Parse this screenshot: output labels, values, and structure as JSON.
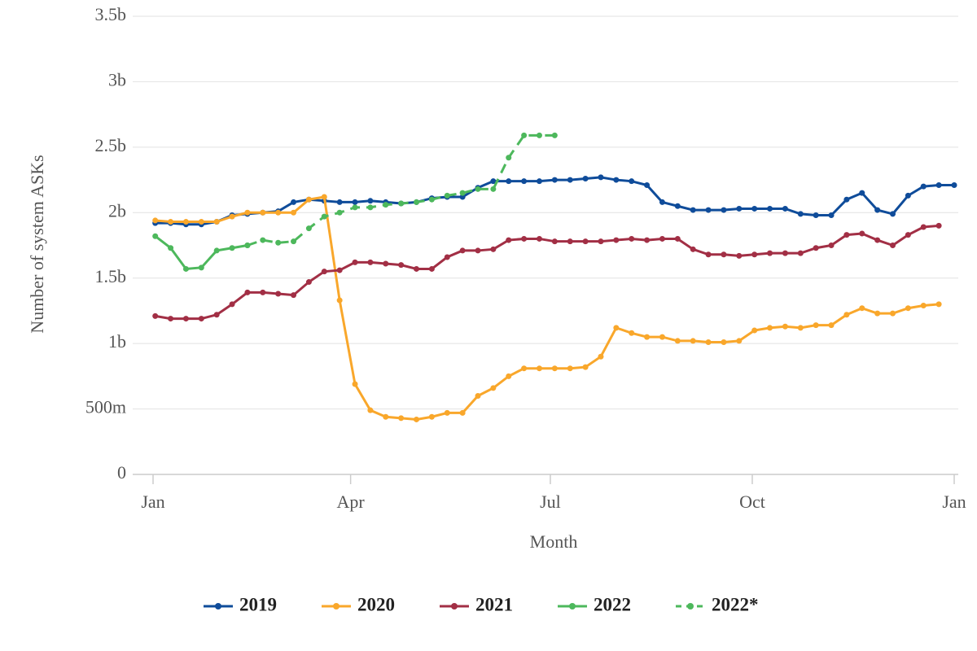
{
  "chart_data": {
    "type": "line",
    "x_label": "Month",
    "y_label": "Number of system ASKs",
    "xlim": [
      0,
      365
    ],
    "xticks": [
      {
        "value": 0,
        "label": "Jan"
      },
      {
        "value": 90,
        "label": "Apr"
      },
      {
        "value": 181,
        "label": "Jul"
      },
      {
        "value": 273,
        "label": "Oct"
      },
      {
        "value": 365,
        "label": "Jan"
      }
    ],
    "ylim": [
      0,
      3.5
    ],
    "yticks": [
      0,
      {
        "value": 0.5,
        "label": "500m"
      },
      {
        "value": 1,
        "label": "1b"
      },
      {
        "value": 1.5,
        "label": "1.5b"
      },
      {
        "value": 2,
        "label": "2b"
      },
      {
        "value": 2.5,
        "label": "2.5b"
      },
      {
        "value": 3,
        "label": "3b"
      },
      {
        "value": 3.5,
        "label": "3.5b"
      }
    ],
    "grid": true,
    "legend": "bottom",
    "x": [
      1,
      8,
      15,
      22,
      29,
      36,
      43,
      50,
      57,
      64,
      71,
      78,
      85,
      92,
      99,
      106,
      113,
      120,
      127,
      134,
      141,
      148,
      155,
      162,
      169,
      176,
      183,
      190,
      197,
      204,
      211,
      218,
      225,
      232,
      239,
      246,
      253,
      260,
      267,
      274,
      281,
      288,
      295,
      302,
      309,
      316,
      323,
      330,
      337,
      344,
      351,
      358,
      365
    ],
    "series": [
      {
        "name": "2019",
        "color": "#0f4c9a",
        "dash": false,
        "values": [
          1.92,
          1.92,
          1.91,
          1.91,
          1.93,
          1.98,
          1.99,
          2.0,
          2.01,
          2.08,
          2.1,
          2.09,
          2.08,
          2.08,
          2.09,
          2.08,
          2.07,
          2.08,
          2.11,
          2.12,
          2.12,
          2.19,
          2.24,
          2.24,
          2.24,
          2.24,
          2.25,
          2.25,
          2.26,
          2.27,
          2.25,
          2.24,
          2.21,
          2.08,
          2.05,
          2.02,
          2.02,
          2.02,
          2.03,
          2.03,
          2.03,
          2.03,
          1.99,
          1.98,
          1.98,
          2.1,
          2.15,
          2.02,
          1.99,
          2.13,
          2.2,
          2.21,
          2.21
        ]
      },
      {
        "name": "2020",
        "color": "#f9a72b",
        "dash": false,
        "values": [
          1.94,
          1.93,
          1.93,
          1.93,
          1.93,
          1.97,
          2.0,
          2.0,
          2.0,
          2.0,
          2.1,
          2.12,
          1.33,
          0.69,
          0.49,
          0.44,
          0.43,
          0.42,
          0.44,
          0.47,
          0.47,
          0.6,
          0.66,
          0.75,
          0.81,
          0.81,
          0.81,
          0.81,
          0.82,
          0.9,
          1.12,
          1.08,
          1.05,
          1.05,
          1.02,
          1.02,
          1.01,
          1.01,
          1.02,
          1.1,
          1.12,
          1.13,
          1.12,
          1.14,
          1.14,
          1.22,
          1.27,
          1.23,
          1.23,
          1.27,
          1.29,
          1.3,
          null
        ]
      },
      {
        "name": "2021",
        "color": "#a22f45",
        "dash": false,
        "values": [
          1.21,
          1.19,
          1.19,
          1.19,
          1.22,
          1.3,
          1.39,
          1.39,
          1.38,
          1.37,
          1.47,
          1.55,
          1.56,
          1.62,
          1.62,
          1.61,
          1.6,
          1.57,
          1.57,
          1.66,
          1.71,
          1.71,
          1.72,
          1.79,
          1.8,
          1.8,
          1.78,
          1.78,
          1.78,
          1.78,
          1.79,
          1.8,
          1.79,
          1.8,
          1.8,
          1.72,
          1.68,
          1.68,
          1.67,
          1.68,
          1.69,
          1.69,
          1.69,
          1.73,
          1.75,
          1.83,
          1.84,
          1.79,
          1.75,
          1.83,
          1.89,
          1.9,
          null
        ]
      },
      {
        "name": "2022",
        "color": "#4db85c",
        "dash": false,
        "values": [
          1.82,
          1.73,
          1.57,
          1.58,
          1.71,
          1.73,
          1.75,
          null,
          null,
          null,
          null,
          null,
          null,
          null,
          null,
          null,
          null,
          null,
          null,
          null,
          null,
          null,
          null,
          null,
          null,
          null,
          null,
          null,
          null,
          null,
          null,
          null,
          null,
          null,
          null,
          null,
          null,
          null,
          null,
          null,
          null,
          null,
          null,
          null,
          null,
          null,
          null,
          null,
          null,
          null,
          null,
          null,
          null
        ]
      },
      {
        "name": "2022*",
        "color": "#4db85c",
        "dash": true,
        "values": [
          null,
          null,
          null,
          null,
          null,
          null,
          1.75,
          1.79,
          1.77,
          1.78,
          1.88,
          1.97,
          2.0,
          2.04,
          2.04,
          2.06,
          2.07,
          2.08,
          2.1,
          2.13,
          2.15,
          2.18,
          2.18,
          2.42,
          2.59,
          2.59,
          2.59,
          null,
          null,
          null,
          null,
          null,
          null,
          null,
          null,
          null,
          null,
          null,
          null,
          null,
          null,
          null,
          null,
          null,
          null,
          null,
          null,
          null,
          null,
          null,
          null,
          null,
          null
        ]
      }
    ]
  }
}
